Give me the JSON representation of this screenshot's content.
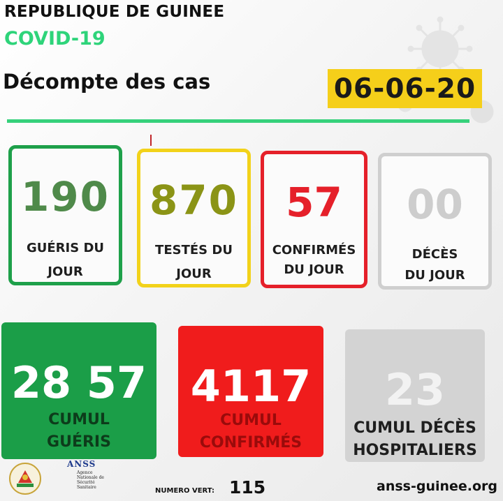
{
  "header": {
    "country": "REPUBLIQUE DE GUINEE",
    "program": "COVID-19",
    "subtitle": "Décompte des cas",
    "date": "06-06-20"
  },
  "daily_cards": [
    {
      "value": "190",
      "label_1": "GUÉRIS DU",
      "label_2": "JOUR",
      "color": "#1ea04a"
    },
    {
      "value": "870",
      "label_1": "TESTÉS DU",
      "label_2": "JOUR",
      "color": "#f2d21a"
    },
    {
      "value": "57",
      "label_1": "CONFIRMÉS",
      "label_2": "DU JOUR",
      "color": "#e5202a"
    },
    {
      "value": "00",
      "label_1": "DÉCÈS",
      "label_2": "DU JOUR",
      "color": "#cfcfcf"
    }
  ],
  "cumulative_cards": [
    {
      "value": "28 57",
      "label_1": "CUMUL",
      "label_2": "GUÉRIS",
      "color": "#1b9e48"
    },
    {
      "value": "4117",
      "label_1": "CUMUL",
      "label_2": "CONFIRMÉS",
      "color": "#f01c1c"
    },
    {
      "value": "23",
      "label_1": "CUMUL DÉCÈS",
      "label_2": "HOSPITALIERS",
      "color": "#d3d3d3"
    }
  ],
  "footer": {
    "logo_text": "ANSS",
    "logo_subtext": "Agence Nationale de Sécurité Sanitaire",
    "numero_label": "NUMERO VERT:",
    "numero_value": "115",
    "website": "anss-guinee.org"
  },
  "icons": [
    "coat-of-arms-icon",
    "anss-logo-icon",
    "virus-icon"
  ]
}
